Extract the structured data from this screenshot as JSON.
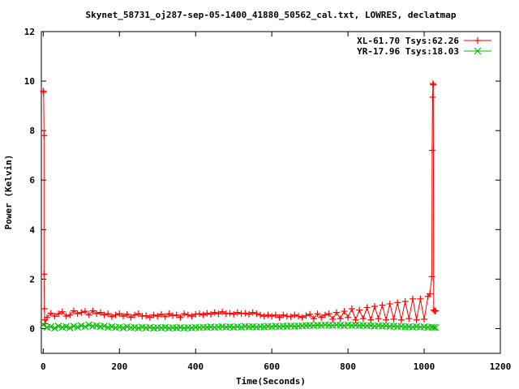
{
  "chart_data": {
    "type": "scatter",
    "title": "Skynet_58731_oj287-sep-05-1400_41880_50562_cal.txt, LOWRES, declatmap",
    "xlabel": "Time(Seconds)",
    "ylabel": "Power (Kelvin)",
    "xlim": [
      -5,
      1200
    ],
    "ylim": [
      -1,
      12
    ],
    "xticks": [
      "0",
      "200",
      "400",
      "600",
      "800",
      "1000",
      "1200"
    ],
    "yticks": [
      "0",
      "2",
      "4",
      "6",
      "8",
      "10",
      "12"
    ],
    "grid": false,
    "legend_position": "top-right",
    "series": [
      {
        "name": "XL-61.70 Tsys:62.26",
        "color": "#ff0000",
        "marker": "plus",
        "points": [
          [
            0,
            9.6
          ],
          [
            1,
            9.55
          ],
          [
            2,
            7.8
          ],
          [
            2,
            2.2
          ],
          [
            3,
            0.8
          ],
          [
            4,
            0.35
          ],
          [
            5,
            0.2
          ],
          [
            10,
            0.45
          ],
          [
            20,
            0.62
          ],
          [
            30,
            0.5
          ],
          [
            40,
            0.6
          ],
          [
            50,
            0.68
          ],
          [
            60,
            0.5
          ],
          [
            70,
            0.55
          ],
          [
            80,
            0.72
          ],
          [
            90,
            0.6
          ],
          [
            100,
            0.65
          ],
          [
            110,
            0.7
          ],
          [
            120,
            0.55
          ],
          [
            130,
            0.72
          ],
          [
            140,
            0.6
          ],
          [
            150,
            0.65
          ],
          [
            160,
            0.55
          ],
          [
            170,
            0.6
          ],
          [
            180,
            0.48
          ],
          [
            190,
            0.55
          ],
          [
            200,
            0.6
          ],
          [
            210,
            0.5
          ],
          [
            220,
            0.58
          ],
          [
            230,
            0.45
          ],
          [
            240,
            0.55
          ],
          [
            250,
            0.6
          ],
          [
            260,
            0.5
          ],
          [
            270,
            0.52
          ],
          [
            280,
            0.45
          ],
          [
            290,
            0.55
          ],
          [
            300,
            0.5
          ],
          [
            310,
            0.58
          ],
          [
            320,
            0.48
          ],
          [
            330,
            0.6
          ],
          [
            340,
            0.52
          ],
          [
            350,
            0.55
          ],
          [
            360,
            0.45
          ],
          [
            370,
            0.6
          ],
          [
            380,
            0.55
          ],
          [
            390,
            0.5
          ],
          [
            400,
            0.58
          ],
          [
            410,
            0.6
          ],
          [
            420,
            0.55
          ],
          [
            430,
            0.62
          ],
          [
            440,
            0.58
          ],
          [
            450,
            0.65
          ],
          [
            460,
            0.6
          ],
          [
            470,
            0.68
          ],
          [
            480,
            0.6
          ],
          [
            490,
            0.62
          ],
          [
            500,
            0.58
          ],
          [
            510,
            0.65
          ],
          [
            520,
            0.6
          ],
          [
            530,
            0.62
          ],
          [
            540,
            0.58
          ],
          [
            550,
            0.65
          ],
          [
            560,
            0.6
          ],
          [
            570,
            0.55
          ],
          [
            580,
            0.5
          ],
          [
            590,
            0.55
          ],
          [
            600,
            0.5
          ],
          [
            610,
            0.55
          ],
          [
            620,
            0.45
          ],
          [
            630,
            0.55
          ],
          [
            640,
            0.5
          ],
          [
            650,
            0.48
          ],
          [
            660,
            0.55
          ],
          [
            670,
            0.5
          ],
          [
            680,
            0.45
          ],
          [
            690,
            0.52
          ],
          [
            700,
            0.58
          ],
          [
            710,
            0.4
          ],
          [
            720,
            0.6
          ],
          [
            730,
            0.45
          ],
          [
            740,
            0.55
          ],
          [
            750,
            0.6
          ],
          [
            760,
            0.38
          ],
          [
            770,
            0.65
          ],
          [
            780,
            0.4
          ],
          [
            790,
            0.7
          ],
          [
            800,
            0.45
          ],
          [
            810,
            0.8
          ],
          [
            820,
            0.35
          ],
          [
            830,
            0.75
          ],
          [
            840,
            0.4
          ],
          [
            850,
            0.85
          ],
          [
            860,
            0.35
          ],
          [
            870,
            0.9
          ],
          [
            880,
            0.4
          ],
          [
            890,
            0.95
          ],
          [
            900,
            0.35
          ],
          [
            910,
            1.0
          ],
          [
            920,
            0.38
          ],
          [
            930,
            1.05
          ],
          [
            940,
            0.35
          ],
          [
            950,
            1.1
          ],
          [
            960,
            0.4
          ],
          [
            970,
            1.2
          ],
          [
            980,
            0.35
          ],
          [
            990,
            1.2
          ],
          [
            1000,
            0.38
          ],
          [
            1010,
            1.3
          ],
          [
            1015,
            1.4
          ],
          [
            1020,
            2.1
          ],
          [
            1021,
            7.2
          ],
          [
            1022,
            9.35
          ],
          [
            1023,
            9.9
          ],
          [
            1024,
            9.85
          ],
          [
            1025,
            0.75
          ],
          [
            1028,
            0.7
          ],
          [
            1030,
            0.72
          ]
        ]
      },
      {
        "name": "YR-17.96 Tsys:18.03",
        "color": "#00c000",
        "marker": "cross",
        "points": [
          [
            0,
            0.15
          ],
          [
            10,
            0.05
          ],
          [
            20,
            0.08
          ],
          [
            30,
            0.02
          ],
          [
            40,
            0.1
          ],
          [
            50,
            0.05
          ],
          [
            60,
            0.08
          ],
          [
            70,
            0.03
          ],
          [
            80,
            0.1
          ],
          [
            90,
            0.06
          ],
          [
            100,
            0.12
          ],
          [
            110,
            0.08
          ],
          [
            120,
            0.15
          ],
          [
            130,
            0.1
          ],
          [
            140,
            0.12
          ],
          [
            150,
            0.08
          ],
          [
            160,
            0.1
          ],
          [
            170,
            0.05
          ],
          [
            180,
            0.08
          ],
          [
            190,
            0.04
          ],
          [
            200,
            0.06
          ],
          [
            210,
            0.03
          ],
          [
            220,
            0.07
          ],
          [
            230,
            0.04
          ],
          [
            240,
            0.05
          ],
          [
            250,
            0.02
          ],
          [
            260,
            0.06
          ],
          [
            270,
            0.03
          ],
          [
            280,
            0.05
          ],
          [
            290,
            0.02
          ],
          [
            300,
            0.04
          ],
          [
            310,
            0.03
          ],
          [
            320,
            0.05
          ],
          [
            330,
            0.02
          ],
          [
            340,
            0.04
          ],
          [
            350,
            0.03
          ],
          [
            360,
            0.05
          ],
          [
            370,
            0.02
          ],
          [
            380,
            0.04
          ],
          [
            390,
            0.03
          ],
          [
            400,
            0.05
          ],
          [
            410,
            0.04
          ],
          [
            420,
            0.06
          ],
          [
            430,
            0.05
          ],
          [
            440,
            0.07
          ],
          [
            450,
            0.05
          ],
          [
            460,
            0.06
          ],
          [
            470,
            0.08
          ],
          [
            480,
            0.06
          ],
          [
            490,
            0.07
          ],
          [
            500,
            0.05
          ],
          [
            510,
            0.08
          ],
          [
            520,
            0.06
          ],
          [
            530,
            0.09
          ],
          [
            540,
            0.07
          ],
          [
            550,
            0.08
          ],
          [
            560,
            0.06
          ],
          [
            570,
            0.08
          ],
          [
            580,
            0.07
          ],
          [
            590,
            0.09
          ],
          [
            600,
            0.08
          ],
          [
            610,
            0.1
          ],
          [
            620,
            0.08
          ],
          [
            630,
            0.1
          ],
          [
            640,
            0.09
          ],
          [
            650,
            0.11
          ],
          [
            660,
            0.09
          ],
          [
            670,
            0.1
          ],
          [
            680,
            0.11
          ],
          [
            690,
            0.12
          ],
          [
            700,
            0.13
          ],
          [
            710,
            0.12
          ],
          [
            720,
            0.14
          ],
          [
            730,
            0.13
          ],
          [
            740,
            0.15
          ],
          [
            750,
            0.14
          ],
          [
            760,
            0.13
          ],
          [
            770,
            0.15
          ],
          [
            780,
            0.14
          ],
          [
            790,
            0.12
          ],
          [
            800,
            0.15
          ],
          [
            810,
            0.13
          ],
          [
            820,
            0.14
          ],
          [
            830,
            0.12
          ],
          [
            840,
            0.13
          ],
          [
            850,
            0.11
          ],
          [
            860,
            0.12
          ],
          [
            870,
            0.1
          ],
          [
            880,
            0.12
          ],
          [
            890,
            0.1
          ],
          [
            900,
            0.11
          ],
          [
            910,
            0.09
          ],
          [
            920,
            0.1
          ],
          [
            930,
            0.08
          ],
          [
            940,
            0.09
          ],
          [
            950,
            0.07
          ],
          [
            960,
            0.08
          ],
          [
            970,
            0.06
          ],
          [
            980,
            0.08
          ],
          [
            990,
            0.06
          ],
          [
            1000,
            0.07
          ],
          [
            1010,
            0.05
          ],
          [
            1020,
            0.06
          ],
          [
            1025,
            0.05
          ],
          [
            1030,
            0.04
          ]
        ]
      }
    ]
  }
}
